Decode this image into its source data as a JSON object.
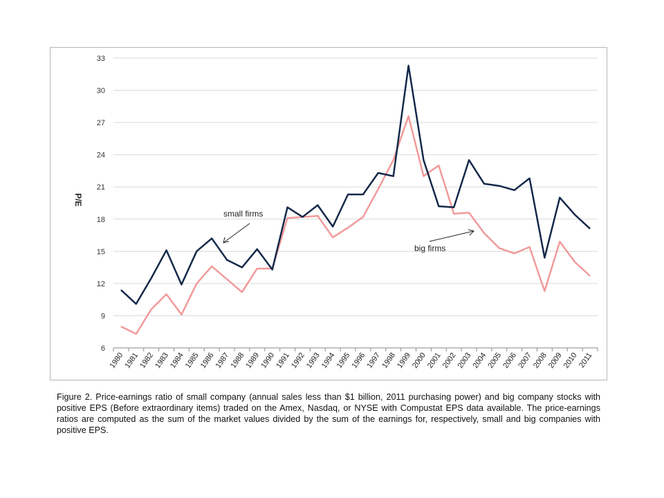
{
  "chart_data": {
    "type": "line",
    "title": "",
    "xlabel": "",
    "ylabel": "P/E",
    "ylim": [
      6,
      33
    ],
    "yticks": [
      6,
      9,
      12,
      15,
      18,
      21,
      24,
      27,
      30,
      33
    ],
    "grid": "horizontal",
    "categories": [
      "1980",
      "1981",
      "1982",
      "1983",
      "1984",
      "1985",
      "1986",
      "1987",
      "1988",
      "1989",
      "1990",
      "1991",
      "1992",
      "1993",
      "1994",
      "1995",
      "1996",
      "1997",
      "1998",
      "1999",
      "2000",
      "2001",
      "2002",
      "2003",
      "2004",
      "2005",
      "2006",
      "2007",
      "2008",
      "2009",
      "2010",
      "2011"
    ],
    "series": [
      {
        "color": "#14284a",
        "values": [
          11.4,
          10.1,
          12.5,
          15.1,
          11.9,
          15.0,
          16.2,
          14.2,
          13.5,
          15.2,
          13.3,
          19.1,
          18.2,
          19.3,
          17.3,
          20.3,
          20.3,
          22.3,
          22.0,
          32.3,
          23.5,
          19.2,
          19.1,
          23.5,
          21.3,
          21.1,
          20.7,
          21.8,
          14.4,
          20.0,
          18.4,
          17.1
        ]
      },
      {
        "color": "#f29a9a",
        "values": [
          8.0,
          7.3,
          9.6,
          11.0,
          9.1,
          12.0,
          13.6,
          12.4,
          11.2,
          13.4,
          13.4,
          18.1,
          18.2,
          18.3,
          16.3,
          17.2,
          18.2,
          20.8,
          23.5,
          27.6,
          22.0,
          23.0,
          18.5,
          18.6,
          16.7,
          15.3,
          14.8,
          15.4,
          11.3,
          15.9,
          14.0,
          12.7
        ]
      }
    ],
    "annotations": [
      {
        "text": "small firms",
        "points_to_series": 0
      },
      {
        "text": "big firms",
        "points_to_series": 1
      }
    ]
  },
  "caption": "Figure 2. Price-earnings ratio of small company (annual sales less than $1 billion, 2011 purchasing power) and big company stocks with positive EPS (Before extraordinary items) traded on the Amex, Nasdaq, or NYSE with Compustat EPS data available.  The price-earnings ratios are computed as the sum of the market values divided by the sum of the earnings for, respectively, small and big companies with positive EPS."
}
